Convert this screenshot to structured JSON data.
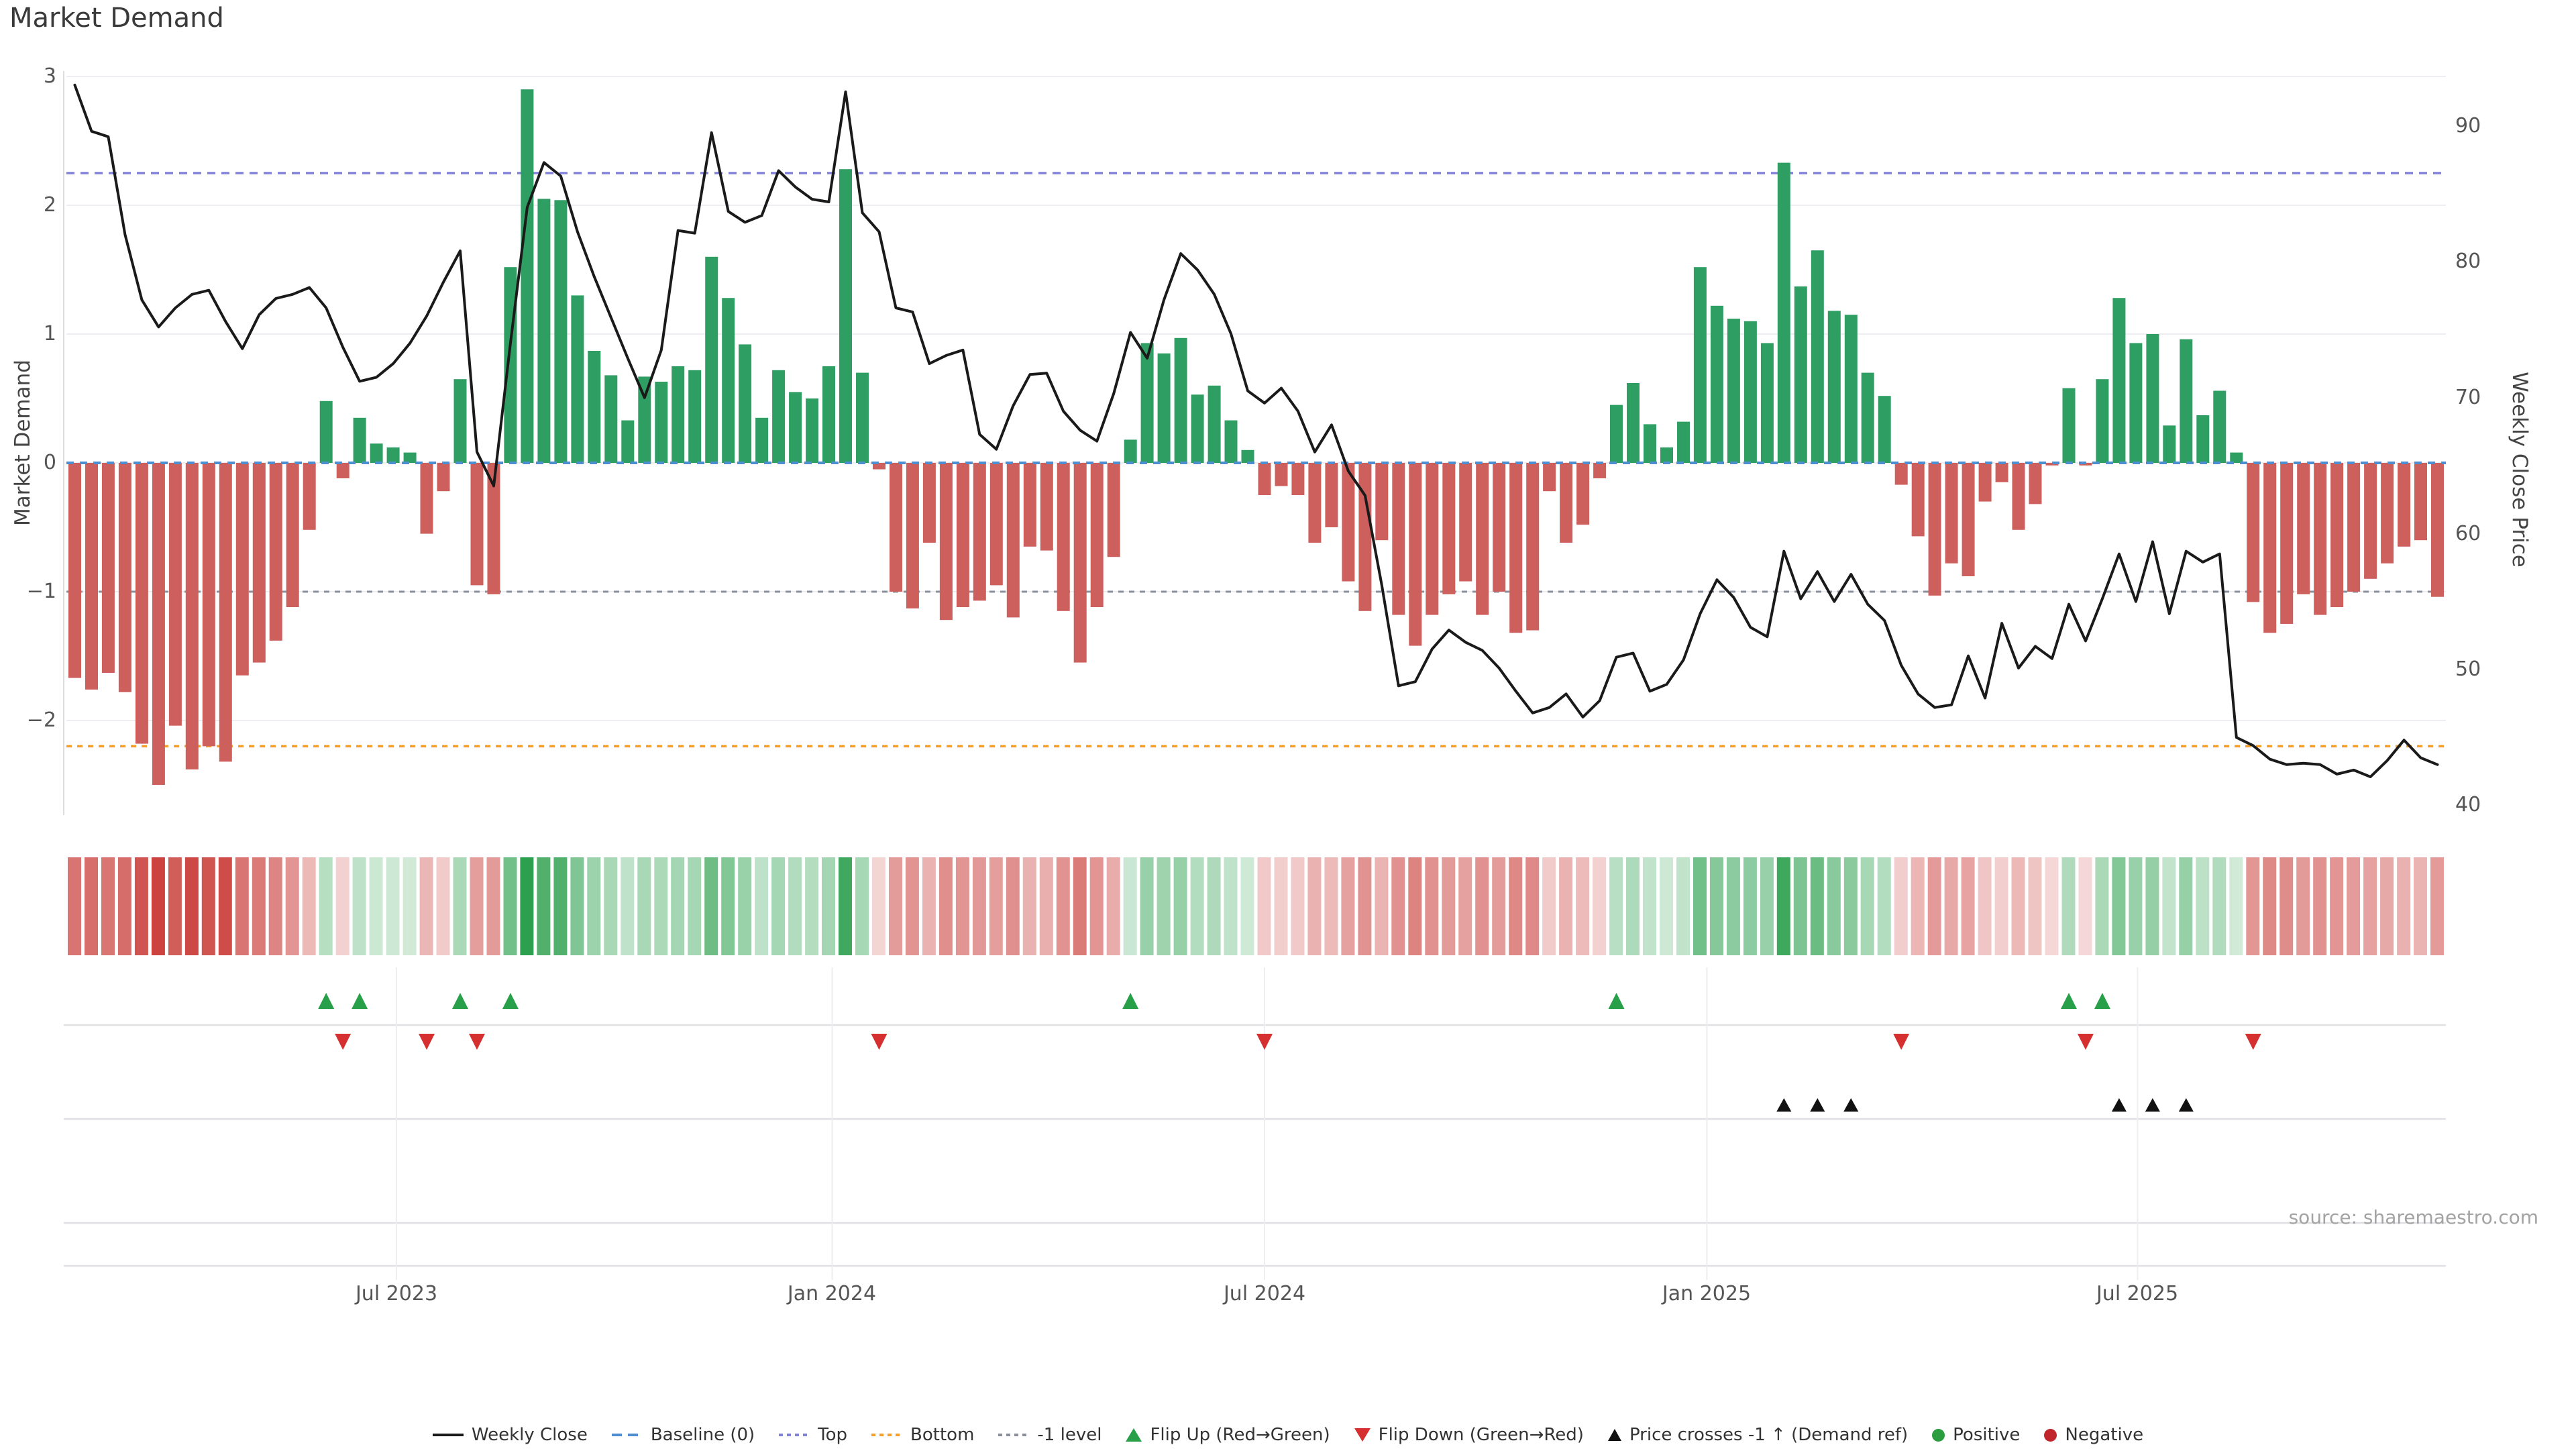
{
  "title": "Market Demand",
  "source": "source: sharemaestro.com",
  "axes": {
    "left_label": "Market Demand",
    "right_label": "Weekly Close Price",
    "left_ticks": [
      "3",
      "2",
      "1",
      "0",
      "−1",
      "−2"
    ],
    "right_ticks": [
      "90",
      "80",
      "70",
      "60",
      "50",
      "40"
    ]
  },
  "legend": {
    "items": [
      {
        "label": "Weekly Close",
        "swatch": "line-solid"
      },
      {
        "label": "Baseline (0)",
        "swatch": "dash-blue"
      },
      {
        "label": "Top",
        "swatch": "dot-purple"
      },
      {
        "label": "Bottom",
        "swatch": "dot-orange"
      },
      {
        "label": "-1 level",
        "swatch": "dot-gray"
      },
      {
        "label": "Flip Up (Red→Green)",
        "swatch": "tri-up-green"
      },
      {
        "label": "Flip Down (Green→Red)",
        "swatch": "tri-down-red"
      },
      {
        "label": "Price crosses -1 ↑ (Demand ref)",
        "swatch": "tri-up-black"
      },
      {
        "label": "Positive",
        "swatch": "circle-green"
      },
      {
        "label": "Negative",
        "swatch": "circle-red"
      }
    ]
  },
  "colors": {
    "bar_positive": "#2f9e63",
    "bar_negative": "#cd5f5c",
    "price_line": "#1a1a1a",
    "baseline": "#4d8ed3",
    "top_line": "#8181d8",
    "bottom_line": "#f59e2c",
    "minus1_line": "#8a8f99",
    "flip_up_marker": "#27a049",
    "flip_down_marker": "#d62f2f",
    "price_cross_marker": "#111111",
    "heat_positive": "#2ca04e",
    "heat_negative": "#c93c38",
    "grid": "#ededf2",
    "separator": "#dfdfe4"
  },
  "chart_data": {
    "type": "bar+line",
    "title": "Market Demand",
    "ylabel_left": "Market Demand",
    "ylabel_right": "Weekly Close Price",
    "weeks": 142,
    "ylim_demand": [
      -2.8,
      3.1
    ],
    "ylim_price": [
      38.5,
      94.5
    ],
    "grid": "horizontal-light",
    "legend_position": "bottom-center",
    "levels": {
      "top": 2.25,
      "baseline": 0,
      "minus1": -1,
      "bottom": -2.2
    },
    "x_ticks": [
      {
        "label": "Jul 2023",
        "week": 19.7
      },
      {
        "label": "Jan 2024",
        "week": 45.7
      },
      {
        "label": "Jul 2024",
        "week": 71.5
      },
      {
        "label": "Jan 2025",
        "week": 97.9
      },
      {
        "label": "Jul 2025",
        "week": 123.6
      }
    ],
    "demand": [
      -1.67,
      -1.76,
      -1.63,
      -1.78,
      -2.18,
      -2.5,
      -2.04,
      -2.38,
      -2.2,
      -2.32,
      -1.65,
      -1.55,
      -1.38,
      -1.12,
      -0.52,
      0.48,
      -0.12,
      0.35,
      0.15,
      0.12,
      0.08,
      -0.55,
      -0.22,
      0.65,
      -0.95,
      -1.02,
      1.52,
      2.9,
      2.05,
      2.04,
      1.3,
      0.87,
      0.68,
      0.33,
      0.67,
      0.63,
      0.75,
      0.72,
      1.6,
      1.28,
      0.92,
      0.35,
      0.72,
      0.55,
      0.5,
      0.75,
      2.28,
      0.7,
      -0.05,
      -1.0,
      -1.13,
      -0.62,
      -1.22,
      -1.12,
      -1.07,
      -0.95,
      -1.2,
      -0.65,
      -0.68,
      -1.15,
      -1.55,
      -1.12,
      -0.73,
      0.18,
      0.93,
      0.85,
      0.97,
      0.53,
      0.6,
      0.33,
      0.1,
      -0.25,
      -0.18,
      -0.25,
      -0.62,
      -0.5,
      -0.92,
      -1.15,
      -0.6,
      -1.18,
      -1.42,
      -1.18,
      -1.02,
      -0.92,
      -1.18,
      -1.0,
      -1.32,
      -1.3,
      -0.22,
      -0.62,
      -0.48,
      -0.12,
      0.45,
      0.62,
      0.3,
      0.12,
      0.32,
      1.52,
      1.22,
      1.12,
      1.1,
      0.93,
      2.33,
      1.37,
      1.65,
      1.18,
      1.15,
      0.7,
      0.52,
      -0.17,
      -0.57,
      -1.03,
      -0.78,
      -0.88,
      -0.3,
      -0.15,
      -0.52,
      -0.32,
      -0.02,
      0.58,
      -0.02,
      0.65,
      1.28,
      0.93,
      1.0,
      0.29,
      0.96,
      0.37,
      0.56,
      0.08,
      -1.08,
      -1.32,
      -1.25,
      -1.02,
      -1.18,
      -1.12,
      -1.0,
      -0.9,
      -0.78,
      -0.65,
      -0.6,
      -1.04
    ],
    "price": [
      93.0,
      89.6,
      89.2,
      82.0,
      77.2,
      75.2,
      76.6,
      77.6,
      77.9,
      75.6,
      73.6,
      76.1,
      77.3,
      77.6,
      78.1,
      76.6,
      73.7,
      71.2,
      71.5,
      72.5,
      74.0,
      76.0,
      78.5,
      80.8,
      66.0,
      63.5,
      74.0,
      84.0,
      87.3,
      86.3,
      82.2,
      78.9,
      75.9,
      72.9,
      70.0,
      73.5,
      82.3,
      82.1,
      89.5,
      83.7,
      82.9,
      83.4,
      86.7,
      85.5,
      84.6,
      84.4,
      92.5,
      83.6,
      82.2,
      76.6,
      76.3,
      72.5,
      73.1,
      73.5,
      67.3,
      66.2,
      69.4,
      71.7,
      71.8,
      69.0,
      67.6,
      66.8,
      70.3,
      74.8,
      72.9,
      77.2,
      80.6,
      79.4,
      77.6,
      74.7,
      70.5,
      69.6,
      70.7,
      69.0,
      66.0,
      68.0,
      64.6,
      62.8,
      56.2,
      48.8,
      49.1,
      51.5,
      52.9,
      52.0,
      51.4,
      50.1,
      48.4,
      46.8,
      47.2,
      48.2,
      46.5,
      47.7,
      50.9,
      51.2,
      48.4,
      48.9,
      50.7,
      54.1,
      56.6,
      55.3,
      53.1,
      52.4,
      58.7,
      55.2,
      57.2,
      55.0,
      57.0,
      54.8,
      53.6,
      50.3,
      48.2,
      47.2,
      47.4,
      51.0,
      47.9,
      53.4,
      50.1,
      51.7,
      50.8,
      54.8,
      52.1,
      55.2,
      58.5,
      55.0,
      59.4,
      54.1,
      58.7,
      57.9,
      58.5,
      45.0,
      44.4,
      43.4,
      43.0,
      43.1,
      43.0,
      42.3,
      42.6,
      42.1,
      43.3,
      44.8,
      43.5,
      43.0
    ],
    "markers": {
      "flip_up_weeks": [
        16,
        18,
        24,
        27,
        64,
        93,
        120,
        122
      ],
      "flip_down_weeks": [
        17,
        22,
        25,
        49,
        72,
        110,
        121,
        131
      ],
      "price_cross_weeks": [
        103,
        105,
        107,
        123,
        125,
        127
      ]
    }
  }
}
